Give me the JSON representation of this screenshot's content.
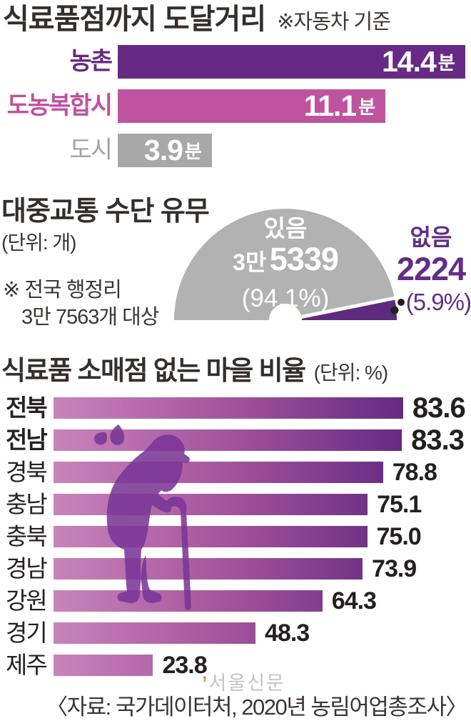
{
  "section1": {
    "title": "식료품점까지 도달거리",
    "note": "※자동차 기준",
    "unit_suffix": "분",
    "bars": [
      {
        "label": "농촌",
        "value": "14.4",
        "color": "#672a84"
      },
      {
        "label": "도농복합시",
        "value": "11.1",
        "color": "#c0539f"
      },
      {
        "label": "도시",
        "value": "3.9",
        "color": "#a9a8a8"
      }
    ]
  },
  "section2": {
    "title": "대중교통 수단 유무",
    "unit_note": "(단위: 개)",
    "footnote_line1": "※ 전국 행정리",
    "footnote_line2": "3만 7563개 대상",
    "have": {
      "label": "있음",
      "value_prefix": "3만",
      "value": "5339",
      "pct": "(94.1%)"
    },
    "none": {
      "label": "없음",
      "value": "2224",
      "pct": "(5.9%)"
    }
  },
  "section3": {
    "title": "식료품 소매점 없는 마을 비율",
    "unit_note": "(단위: %)",
    "rows": [
      {
        "label": "전북",
        "value": "83.6"
      },
      {
        "label": "전남",
        "value": "83.3"
      },
      {
        "label": "경북",
        "value": "78.8"
      },
      {
        "label": "충남",
        "value": "75.1"
      },
      {
        "label": "충북",
        "value": "75.0"
      },
      {
        "label": "경남",
        "value": "73.9"
      },
      {
        "label": "강원",
        "value": "64.3"
      },
      {
        "label": "경기",
        "value": "48.3"
      },
      {
        "label": "제주",
        "value": "23.8"
      }
    ]
  },
  "watermark": {
    "tick": "’",
    "text": "서울신문"
  },
  "source": "〈자료: 국가데이터처, 2020년 농림어업총조사〉",
  "colors": {
    "dark_purple": "#672a84",
    "magenta": "#c0539f",
    "gray_bar": "#a9a8a8",
    "gauge_gray": "#b3b2b2",
    "gauge_purple": "#5e2a7e",
    "none_text_purple": "#622e86",
    "gradient_start": "#c884bc",
    "gradient_end": "#652a82",
    "silhouette_purple": "#7a3697",
    "title_text": "#342e2d"
  },
  "chart_data": [
    {
      "type": "bar",
      "orientation": "horizontal",
      "title": "식료품점까지 도달거리",
      "subtitle": "※자동차 기준",
      "unit": "분",
      "categories": [
        "농촌",
        "도농복합시",
        "도시"
      ],
      "values": [
        14.4,
        11.1,
        3.9
      ],
      "xlim": [
        0,
        14.5
      ],
      "bar_colors": [
        "#672a84",
        "#c0539f",
        "#a9a8a8"
      ],
      "value_labels_inside_bars": true
    },
    {
      "type": "pie",
      "shape": "semicircle-donut",
      "title": "대중교통 수단 유무",
      "unit_note": "(단위: 개)",
      "footnote": "※ 전국 행정리 3만 7563개 대상",
      "total": 37563,
      "slices": [
        {
          "label": "있음",
          "count": 35339,
          "count_text": "3만 5339",
          "pct": 94.1,
          "color": "#b3b2b2"
        },
        {
          "label": "없음",
          "count": 2224,
          "count_text": "2224",
          "pct": 5.9,
          "color": "#5e2a7e"
        }
      ]
    },
    {
      "type": "bar",
      "orientation": "horizontal",
      "title": "식료품 소매점 없는 마을 비율",
      "unit": "%",
      "categories": [
        "전북",
        "전남",
        "경북",
        "충남",
        "충북",
        "경남",
        "강원",
        "경기",
        "제주"
      ],
      "values": [
        83.6,
        83.3,
        78.8,
        75.1,
        75.0,
        73.9,
        64.3,
        48.3,
        23.8
      ],
      "xlim": [
        0,
        100
      ],
      "emphasized_categories": [
        "전북",
        "전남"
      ],
      "bar_gradient": [
        "#c884bc",
        "#652a82"
      ],
      "overlay": "elderly-person-with-cane-silhouette"
    }
  ]
}
